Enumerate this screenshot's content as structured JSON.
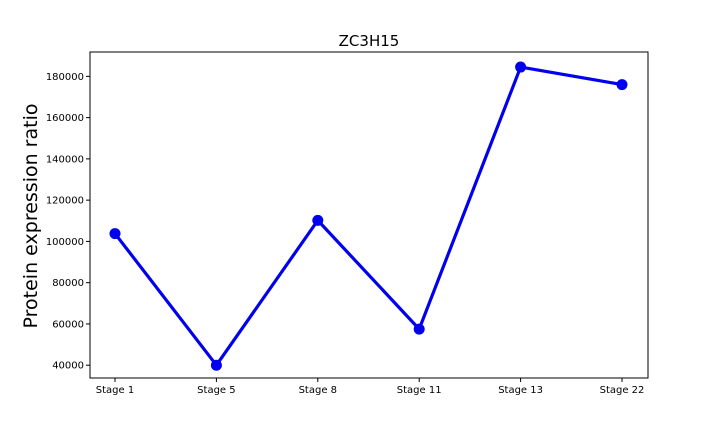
{
  "chart_data": {
    "type": "line",
    "title": "ZC3H15",
    "xlabel": "",
    "ylabel": "Protein expression ratio",
    "categories": [
      "Stage 1",
      "Stage 5",
      "Stage 8",
      "Stage 11",
      "Stage 13",
      "Stage 22"
    ],
    "series": [
      {
        "values": [
          103800,
          40000,
          110200,
          57500,
          184500,
          176000
        ]
      }
    ],
    "ylim": [
      33800,
      191800
    ],
    "yticks": [
      40000,
      60000,
      80000,
      100000,
      120000,
      140000,
      160000,
      180000
    ],
    "ytick_labels": [
      "40000",
      "60000",
      "80000",
      "100000",
      "120000",
      "140000",
      "160000",
      "180000"
    ],
    "grid": false,
    "legend": "none",
    "colors": {
      "line": "#0000ee",
      "axes": "#000000",
      "background": "#ffffff"
    }
  }
}
